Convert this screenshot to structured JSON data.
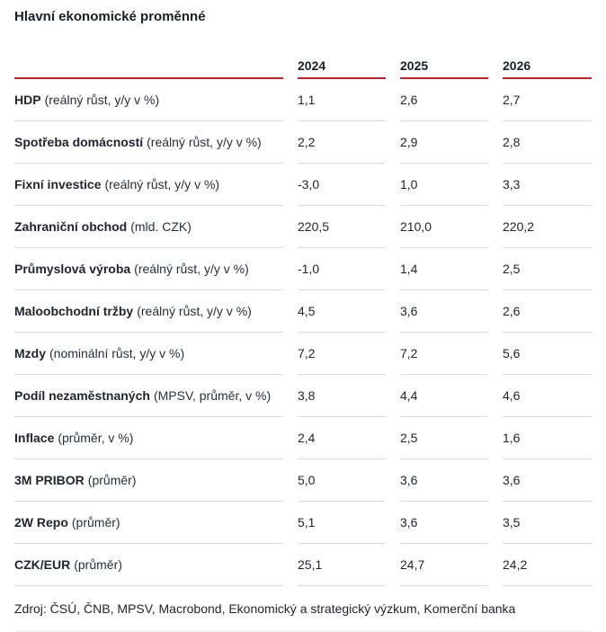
{
  "title": "Hlavní ekonomické proměnné",
  "colors": {
    "accent_red": "#cc1a2b",
    "divider_gray": "#d8dbdf",
    "text_dark": "#23242f",
    "background": "#ffffff"
  },
  "chart_data": {
    "type": "table",
    "title": "Hlavní ekonomické proměnné",
    "columns": [
      "2024",
      "2025",
      "2026"
    ],
    "rows": [
      {
        "label": "HDP",
        "note": "(reálný růst, y/y v %)",
        "values": [
          "1,1",
          "2,6",
          "2,7"
        ]
      },
      {
        "label": "Spotřeba domácností",
        "note": "(reálný růst, y/y v %)",
        "values": [
          "2,2",
          "2,9",
          "2,8"
        ]
      },
      {
        "label": "Fixní investice",
        "note": "(reálný růst, y/y v %)",
        "values": [
          "-3,0",
          "1,0",
          "3,3"
        ]
      },
      {
        "label": "Zahraniční obchod",
        "note": "(mld. CZK)",
        "values": [
          "220,5",
          "210,0",
          "220,2"
        ]
      },
      {
        "label": "Průmyslová výroba",
        "note": "(reálný růst, y/y v %)",
        "values": [
          "-1,0",
          "1,4",
          "2,5"
        ]
      },
      {
        "label": "Maloobchodní tržby",
        "note": "(reálný růst, y/y v %)",
        "values": [
          "4,5",
          "3,6",
          "2,6"
        ]
      },
      {
        "label": "Mzdy",
        "note": "(nominální růst, y/y v %)",
        "values": [
          "7,2",
          "7,2",
          "5,6"
        ]
      },
      {
        "label": "Podíl nezaměstnaných",
        "note": "(MPSV, průměr, v %)",
        "values": [
          "3,8",
          "4,4",
          "4,6"
        ]
      },
      {
        "label": "Inflace",
        "note": "(průměr, v %)",
        "values": [
          "2,4",
          "2,5",
          "1,6"
        ]
      },
      {
        "label": "3M PRIBOR",
        "note": "(průměr)",
        "values": [
          "5,0",
          "3,6",
          "3,6"
        ]
      },
      {
        "label": "2W Repo",
        "note": "(průměr)",
        "values": [
          "5,1",
          "3,6",
          "3,5"
        ]
      },
      {
        "label": "CZK/EUR",
        "note": "(průměr)",
        "values": [
          "25,1",
          "24,7",
          "24,2"
        ]
      }
    ]
  },
  "footer": {
    "source": "Zdroj: ČSÚ, ČNB, MPSV, Macrobond, Ekonomický a strategický výzkum, Komerční banka"
  }
}
